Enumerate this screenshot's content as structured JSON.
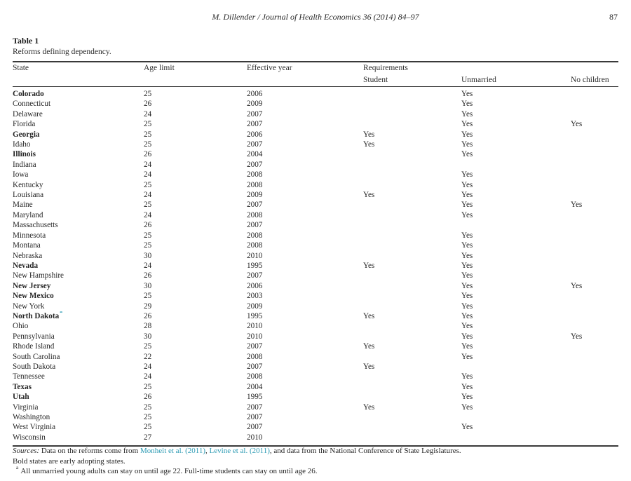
{
  "page": {
    "journal_header": "M. Dillender / Journal of Health Economics 36 (2014) 84–97",
    "page_number": "87"
  },
  "colors": {
    "link": "#2b9ab3",
    "text": "#242424",
    "rule": "#3a3a3a"
  },
  "table": {
    "label": "Table 1",
    "caption": "Reforms defining dependency.",
    "columns": {
      "state": "State",
      "age_limit": "Age limit",
      "effective_year": "Effective year",
      "requirements": "Requirements",
      "student": "Student",
      "unmarried": "Unmarried",
      "no_children": "No children"
    },
    "rows": [
      {
        "state": "Colorado",
        "bold": true,
        "marker": "",
        "age": "25",
        "year": "2006",
        "student": "",
        "unmarried": "Yes",
        "no_children": ""
      },
      {
        "state": "Connecticut",
        "bold": false,
        "marker": "",
        "age": "26",
        "year": "2009",
        "student": "",
        "unmarried": "Yes",
        "no_children": ""
      },
      {
        "state": "Delaware",
        "bold": false,
        "marker": "",
        "age": "24",
        "year": "2007",
        "student": "",
        "unmarried": "Yes",
        "no_children": ""
      },
      {
        "state": "Florida",
        "bold": false,
        "marker": "",
        "age": "25",
        "year": "2007",
        "student": "",
        "unmarried": "Yes",
        "no_children": "Yes"
      },
      {
        "state": "Georgia",
        "bold": true,
        "marker": "",
        "age": "25",
        "year": "2006",
        "student": "Yes",
        "unmarried": "Yes",
        "no_children": ""
      },
      {
        "state": "Idaho",
        "bold": false,
        "marker": "",
        "age": "25",
        "year": "2007",
        "student": "Yes",
        "unmarried": "Yes",
        "no_children": ""
      },
      {
        "state": "Illinois",
        "bold": true,
        "marker": "",
        "age": "26",
        "year": "2004",
        "student": "",
        "unmarried": "Yes",
        "no_children": ""
      },
      {
        "state": "Indiana",
        "bold": false,
        "marker": "",
        "age": "24",
        "year": "2007",
        "student": "",
        "unmarried": "",
        "no_children": ""
      },
      {
        "state": "Iowa",
        "bold": false,
        "marker": "",
        "age": "24",
        "year": "2008",
        "student": "",
        "unmarried": "Yes",
        "no_children": ""
      },
      {
        "state": "Kentucky",
        "bold": false,
        "marker": "",
        "age": "25",
        "year": "2008",
        "student": "",
        "unmarried": "Yes",
        "no_children": ""
      },
      {
        "state": "Louisiana",
        "bold": false,
        "marker": "",
        "age": "24",
        "year": "2009",
        "student": "Yes",
        "unmarried": "Yes",
        "no_children": ""
      },
      {
        "state": "Maine",
        "bold": false,
        "marker": "",
        "age": "25",
        "year": "2007",
        "student": "",
        "unmarried": "Yes",
        "no_children": "Yes"
      },
      {
        "state": "Maryland",
        "bold": false,
        "marker": "",
        "age": "24",
        "year": "2008",
        "student": "",
        "unmarried": "Yes",
        "no_children": ""
      },
      {
        "state": "Massachusetts",
        "bold": false,
        "marker": "",
        "age": "26",
        "year": "2007",
        "student": "",
        "unmarried": "",
        "no_children": ""
      },
      {
        "state": "Minnesota",
        "bold": false,
        "marker": "",
        "age": "25",
        "year": "2008",
        "student": "",
        "unmarried": "Yes",
        "no_children": ""
      },
      {
        "state": "Montana",
        "bold": false,
        "marker": "",
        "age": "25",
        "year": "2008",
        "student": "",
        "unmarried": "Yes",
        "no_children": ""
      },
      {
        "state": "Nebraska",
        "bold": false,
        "marker": "",
        "age": "30",
        "year": "2010",
        "student": "",
        "unmarried": "Yes",
        "no_children": ""
      },
      {
        "state": "Nevada",
        "bold": true,
        "marker": "",
        "age": "24",
        "year": "1995",
        "student": "Yes",
        "unmarried": "Yes",
        "no_children": ""
      },
      {
        "state": "New Hampshire",
        "bold": false,
        "marker": "",
        "age": "26",
        "year": "2007",
        "student": "",
        "unmarried": "Yes",
        "no_children": ""
      },
      {
        "state": "New Jersey",
        "bold": true,
        "marker": "",
        "age": "30",
        "year": "2006",
        "student": "",
        "unmarried": "Yes",
        "no_children": "Yes"
      },
      {
        "state": "New Mexico",
        "bold": true,
        "marker": "",
        "age": "25",
        "year": "2003",
        "student": "",
        "unmarried": "Yes",
        "no_children": ""
      },
      {
        "state": "New York",
        "bold": false,
        "marker": "",
        "age": "29",
        "year": "2009",
        "student": "",
        "unmarried": "Yes",
        "no_children": ""
      },
      {
        "state": "North Dakota",
        "bold": true,
        "marker": "a",
        "age": "26",
        "year": "1995",
        "student": "Yes",
        "unmarried": "Yes",
        "no_children": ""
      },
      {
        "state": "Ohio",
        "bold": false,
        "marker": "",
        "age": "28",
        "year": "2010",
        "student": "",
        "unmarried": "Yes",
        "no_children": ""
      },
      {
        "state": "Pennsylvania",
        "bold": false,
        "marker": "",
        "age": "30",
        "year": "2010",
        "student": "",
        "unmarried": "Yes",
        "no_children": "Yes"
      },
      {
        "state": "Rhode Island",
        "bold": false,
        "marker": "",
        "age": "25",
        "year": "2007",
        "student": "Yes",
        "unmarried": "Yes",
        "no_children": ""
      },
      {
        "state": "South Carolina",
        "bold": false,
        "marker": "",
        "age": "22",
        "year": "2008",
        "student": "",
        "unmarried": "Yes",
        "no_children": ""
      },
      {
        "state": "South Dakota",
        "bold": false,
        "marker": "",
        "age": "24",
        "year": "2007",
        "student": "Yes",
        "unmarried": "",
        "no_children": ""
      },
      {
        "state": "Tennessee",
        "bold": false,
        "marker": "",
        "age": "24",
        "year": "2008",
        "student": "",
        "unmarried": "Yes",
        "no_children": ""
      },
      {
        "state": "Texas",
        "bold": true,
        "marker": "",
        "age": "25",
        "year": "2004",
        "student": "",
        "unmarried": "Yes",
        "no_children": ""
      },
      {
        "state": "Utah",
        "bold": true,
        "marker": "",
        "age": "26",
        "year": "1995",
        "student": "",
        "unmarried": "Yes",
        "no_children": ""
      },
      {
        "state": "Virginia",
        "bold": false,
        "marker": "",
        "age": "25",
        "year": "2007",
        "student": "Yes",
        "unmarried": "Yes",
        "no_children": ""
      },
      {
        "state": "Washington",
        "bold": false,
        "marker": "",
        "age": "25",
        "year": "2007",
        "student": "",
        "unmarried": "",
        "no_children": ""
      },
      {
        "state": "West Virginia",
        "bold": false,
        "marker": "",
        "age": "25",
        "year": "2007",
        "student": "",
        "unmarried": "Yes",
        "no_children": ""
      },
      {
        "state": "Wisconsin",
        "bold": false,
        "marker": "",
        "age": "27",
        "year": "2010",
        "student": "",
        "unmarried": "",
        "no_children": ""
      }
    ]
  },
  "footer": {
    "sources_label": "Sources:",
    "sources_text1": " Data on the reforms come from ",
    "link1": "Monheit et al. (2011)",
    "sources_text2": ", ",
    "link2": "Levine et al. (2011)",
    "sources_text3": ", and data from the National Conference of State Legislatures.",
    "bold_note": "Bold states are early adopting states.",
    "footnote_marker": "a",
    "footnote_text": "All unmarried young adults can stay on until age 22. Full-time students can stay on until age 26."
  }
}
